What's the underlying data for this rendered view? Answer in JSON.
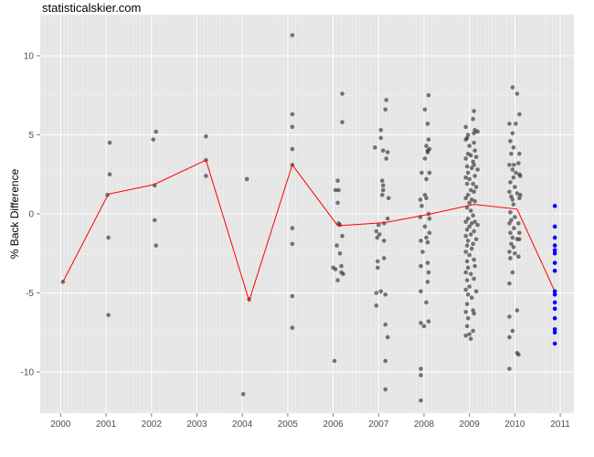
{
  "watermark": "statisticalskier.com",
  "chart_data": {
    "type": "scatter",
    "title": "",
    "xlabel": "",
    "ylabel": "% Back Difference",
    "xlim": [
      1999.55,
      2011.3
    ],
    "ylim": [
      -12.6,
      12.6
    ],
    "x_ticks": [
      2000,
      2001,
      2002,
      2003,
      2004,
      2005,
      2006,
      2007,
      2008,
      2009,
      2010,
      2011
    ],
    "y_ticks": [
      -10,
      -5,
      0,
      5,
      10
    ],
    "grid": true,
    "legend": "none",
    "colors": {
      "panel": "#e5e5e5",
      "grid": "#ffffff",
      "points": "#333333",
      "highlight": "#0000ff",
      "line": "#ff0000"
    },
    "series": [
      {
        "role": "points",
        "points": [
          [
            2000.05,
            -4.3
          ],
          [
            2001.03,
            1.2
          ],
          [
            2001.05,
            -6.4
          ],
          [
            2001.05,
            -1.5
          ],
          [
            2001.08,
            2.5
          ],
          [
            2001.08,
            4.5
          ],
          [
            2002.04,
            4.7
          ],
          [
            2002.07,
            1.8
          ],
          [
            2002.07,
            -0.4
          ],
          [
            2002.1,
            5.2
          ],
          [
            2002.1,
            -2.0
          ],
          [
            2003.2,
            4.9
          ],
          [
            2003.2,
            3.4
          ],
          [
            2003.2,
            2.4
          ],
          [
            2004.02,
            -11.4
          ],
          [
            2004.1,
            2.2
          ],
          [
            2004.15,
            -5.4
          ],
          [
            2005.1,
            11.3
          ],
          [
            2005.1,
            6.3
          ],
          [
            2005.1,
            5.5
          ],
          [
            2005.1,
            4.1
          ],
          [
            2005.1,
            3.1
          ],
          [
            2005.1,
            -0.9
          ],
          [
            2005.1,
            -1.9
          ],
          [
            2005.1,
            -5.2
          ],
          [
            2005.1,
            -7.2
          ],
          [
            2006.0,
            -3.4
          ],
          [
            2006.03,
            -9.3
          ],
          [
            2006.05,
            -3.5
          ],
          [
            2006.05,
            1.5
          ],
          [
            2006.08,
            -2.0
          ],
          [
            2006.1,
            2.1
          ],
          [
            2006.1,
            0.7
          ],
          [
            2006.12,
            1.5
          ],
          [
            2006.12,
            -0.6
          ],
          [
            2006.15,
            -0.7
          ],
          [
            2006.15,
            -2.5
          ],
          [
            2006.18,
            -3.3
          ],
          [
            2006.18,
            -3.7
          ],
          [
            2006.2,
            7.6
          ],
          [
            2006.2,
            5.8
          ],
          [
            2006.2,
            -1.4
          ],
          [
            2006.22,
            -3.8
          ],
          [
            2006.1,
            -4.2
          ],
          [
            2006.92,
            4.2
          ],
          [
            2006.95,
            -1.1
          ],
          [
            2006.95,
            -5.0
          ],
          [
            2006.95,
            -5.8
          ],
          [
            2006.97,
            -1.5
          ],
          [
            2006.98,
            -3.0
          ],
          [
            2006.98,
            -3.4
          ],
          [
            2007.0,
            -0.7
          ],
          [
            2007.02,
            -1.3
          ],
          [
            2007.05,
            5.3
          ],
          [
            2007.05,
            4.8
          ],
          [
            2007.05,
            -4.9
          ],
          [
            2007.08,
            2.1
          ],
          [
            2007.08,
            1.2
          ],
          [
            2007.1,
            4.0
          ],
          [
            2007.1,
            1.8
          ],
          [
            2007.1,
            1.5
          ],
          [
            2007.12,
            -0.6
          ],
          [
            2007.12,
            -1.7
          ],
          [
            2007.12,
            -2.8
          ],
          [
            2007.15,
            6.6
          ],
          [
            2007.15,
            -5.1
          ],
          [
            2007.15,
            -7.0
          ],
          [
            2007.15,
            -9.3
          ],
          [
            2007.15,
            -11.1
          ],
          [
            2007.17,
            7.2
          ],
          [
            2007.17,
            3.5
          ],
          [
            2007.2,
            3.9
          ],
          [
            2007.2,
            -0.3
          ],
          [
            2007.2,
            -7.8
          ],
          [
            2007.22,
            1.0
          ],
          [
            2007.92,
            0.9
          ],
          [
            2007.92,
            -0.2
          ],
          [
            2007.93,
            -1.7
          ],
          [
            2007.93,
            -3.3
          ],
          [
            2007.93,
            -4.9
          ],
          [
            2007.93,
            -6.9
          ],
          [
            2007.93,
            -9.8
          ],
          [
            2007.93,
            -10.2
          ],
          [
            2007.93,
            -11.8
          ],
          [
            2007.95,
            2.6
          ],
          [
            2007.95,
            0.5
          ],
          [
            2007.97,
            -2.4
          ],
          [
            2008.0,
            -7.1
          ],
          [
            2008.02,
            6.6
          ],
          [
            2008.02,
            3.5
          ],
          [
            2008.02,
            1.2
          ],
          [
            2008.02,
            -0.8
          ],
          [
            2008.05,
            4.3
          ],
          [
            2008.05,
            2.2
          ],
          [
            2008.05,
            1.0
          ],
          [
            2008.05,
            -1.5
          ],
          [
            2008.05,
            -5.6
          ],
          [
            2008.08,
            5.7
          ],
          [
            2008.08,
            4.0
          ],
          [
            2008.08,
            3.9
          ],
          [
            2008.08,
            -1.8
          ],
          [
            2008.08,
            -3.1
          ],
          [
            2008.08,
            -4.3
          ],
          [
            2008.1,
            7.5
          ],
          [
            2008.1,
            4.7
          ],
          [
            2008.1,
            0.0
          ],
          [
            2008.1,
            -3.7
          ],
          [
            2008.1,
            -6.8
          ],
          [
            2008.12,
            4.1
          ],
          [
            2008.12,
            2.6
          ],
          [
            2008.12,
            -0.3
          ],
          [
            2008.12,
            -1.2
          ],
          [
            2008.92,
            5.5
          ],
          [
            2008.92,
            4.7
          ],
          [
            2008.92,
            3.5
          ],
          [
            2008.92,
            2.3
          ],
          [
            2008.92,
            1.0
          ],
          [
            2008.92,
            -0.5
          ],
          [
            2008.92,
            -1.4
          ],
          [
            2008.92,
            -2.4
          ],
          [
            2008.92,
            -3.7
          ],
          [
            2008.92,
            -4.8
          ],
          [
            2008.92,
            -6.2
          ],
          [
            2008.92,
            -7.7
          ],
          [
            2008.95,
            4.8
          ],
          [
            2008.95,
            3.0
          ],
          [
            2008.95,
            1.9
          ],
          [
            2008.95,
            0.4
          ],
          [
            2008.95,
            -1.0
          ],
          [
            2008.95,
            -2.0
          ],
          [
            2008.95,
            -3.0
          ],
          [
            2008.95,
            -4.2
          ],
          [
            2008.95,
            -5.7
          ],
          [
            2008.95,
            -7.1
          ],
          [
            2008.97,
            5.0
          ],
          [
            2008.97,
            3.8
          ],
          [
            2008.97,
            2.6
          ],
          [
            2008.97,
            1.2
          ],
          [
            2008.97,
            -0.3
          ],
          [
            2008.97,
            -1.7
          ],
          [
            2008.97,
            -3.4
          ],
          [
            2008.97,
            -5.1
          ],
          [
            2008.97,
            -6.6
          ],
          [
            2009.0,
            4.3
          ],
          [
            2009.0,
            2.2
          ],
          [
            2009.0,
            0.7
          ],
          [
            2009.0,
            -0.8
          ],
          [
            2009.0,
            -2.6
          ],
          [
            2009.0,
            -4.6
          ],
          [
            2009.0,
            -7.6
          ],
          [
            2009.03,
            3.7
          ],
          [
            2009.03,
            1.5
          ],
          [
            2009.03,
            0.2
          ],
          [
            2009.03,
            -1.3
          ],
          [
            2009.03,
            -3.8
          ],
          [
            2009.03,
            -7.9
          ],
          [
            2009.05,
            2.9
          ],
          [
            2009.05,
            0.9
          ],
          [
            2009.05,
            -0.6
          ],
          [
            2009.05,
            -2.2
          ],
          [
            2009.05,
            -5.3
          ],
          [
            2009.08,
            6.0
          ],
          [
            2009.08,
            3.3
          ],
          [
            2009.08,
            1.9
          ],
          [
            2009.08,
            -0.1
          ],
          [
            2009.08,
            -1.9
          ],
          [
            2009.08,
            -6.1
          ],
          [
            2009.08,
            -7.4
          ],
          [
            2009.1,
            6.5
          ],
          [
            2009.1,
            5.1
          ],
          [
            2009.1,
            4.5
          ],
          [
            2009.1,
            3.1
          ],
          [
            2009.1,
            1.4
          ],
          [
            2009.1,
            -1.1
          ],
          [
            2009.1,
            -2.9
          ],
          [
            2009.1,
            -4.1
          ],
          [
            2009.1,
            -6.3
          ],
          [
            2009.12,
            5.3
          ],
          [
            2009.12,
            4.0
          ],
          [
            2009.12,
            2.4
          ],
          [
            2009.12,
            0.8
          ],
          [
            2009.12,
            -0.5
          ],
          [
            2009.12,
            -3.3
          ],
          [
            2009.15,
            3.6
          ],
          [
            2009.15,
            1.7
          ],
          [
            2009.15,
            -1.6
          ],
          [
            2009.15,
            -4.9
          ],
          [
            2009.18,
            5.2
          ],
          [
            2009.18,
            2.8
          ],
          [
            2009.18,
            -0.7
          ],
          [
            2009.88,
            5.7
          ],
          [
            2009.88,
            3.1
          ],
          [
            2009.88,
            1.4
          ],
          [
            2009.88,
            -0.6
          ],
          [
            2009.88,
            -2.4
          ],
          [
            2009.88,
            -4.4
          ],
          [
            2009.88,
            -6.5
          ],
          [
            2009.88,
            -7.8
          ],
          [
            2009.88,
            -9.8
          ],
          [
            2009.9,
            4.6
          ],
          [
            2009.9,
            2.0
          ],
          [
            2009.9,
            0.1
          ],
          [
            2009.9,
            -1.2
          ],
          [
            2009.9,
            -2.8
          ],
          [
            2009.92,
            3.8
          ],
          [
            2009.92,
            1.1
          ],
          [
            2009.92,
            -0.4
          ],
          [
            2009.92,
            -1.9
          ],
          [
            2009.95,
            8.0
          ],
          [
            2009.95,
            5.1
          ],
          [
            2009.95,
            2.8
          ],
          [
            2009.95,
            0.9
          ],
          [
            2009.95,
            -1.5
          ],
          [
            2009.95,
            -3.7
          ],
          [
            2009.95,
            -7.4
          ],
          [
            2009.97,
            4.2
          ],
          [
            2009.97,
            2.3
          ],
          [
            2009.97,
            0.6
          ],
          [
            2009.97,
            -2.1
          ],
          [
            2009.98,
            3.1
          ],
          [
            2009.98,
            -0.9
          ],
          [
            2010.0,
            1.7
          ],
          [
            2010.0,
            -0.2
          ],
          [
            2010.0,
            -2.5
          ],
          [
            2010.02,
            5.7
          ],
          [
            2010.02,
            2.6
          ],
          [
            2010.05,
            7.6
          ],
          [
            2010.05,
            1.3
          ],
          [
            2010.05,
            -1.6
          ],
          [
            2010.05,
            -6.1
          ],
          [
            2010.05,
            -8.8
          ],
          [
            2010.08,
            3.2
          ],
          [
            2010.08,
            -0.6
          ],
          [
            2010.08,
            -2.7
          ],
          [
            2010.08,
            -8.9
          ],
          [
            2010.1,
            6.3
          ],
          [
            2010.1,
            3.8
          ],
          [
            2010.1,
            2.5
          ],
          [
            2010.1,
            1.0
          ],
          [
            2010.1,
            -1.2
          ],
          [
            2010.1,
            -1.6
          ],
          [
            2010.12,
            2.4
          ],
          [
            2010.12,
            1.2
          ]
        ]
      },
      {
        "role": "highlight",
        "points": [
          [
            2010.88,
            0.5
          ],
          [
            2010.88,
            -0.8
          ],
          [
            2010.88,
            -1.5
          ],
          [
            2010.88,
            -2.0
          ],
          [
            2010.88,
            -2.3
          ],
          [
            2010.88,
            -2.5
          ],
          [
            2010.88,
            -3.1
          ],
          [
            2010.88,
            -3.6
          ],
          [
            2010.88,
            -4.9
          ],
          [
            2010.88,
            -5.1
          ],
          [
            2010.88,
            -5.6
          ],
          [
            2010.88,
            -6.0
          ],
          [
            2010.88,
            -6.6
          ],
          [
            2010.88,
            -7.3
          ],
          [
            2010.88,
            -7.5
          ],
          [
            2010.88,
            -8.2
          ]
        ]
      },
      {
        "role": "mean-line",
        "points": [
          [
            2000.05,
            -4.3
          ],
          [
            2001.05,
            1.25
          ],
          [
            2002.05,
            1.85
          ],
          [
            2003.2,
            3.4
          ],
          [
            2004.15,
            -5.5
          ],
          [
            2005.1,
            3.1
          ],
          [
            2006.1,
            -0.75
          ],
          [
            2007.15,
            -0.55
          ],
          [
            2008.15,
            0.0
          ],
          [
            2009.1,
            0.6
          ],
          [
            2010.05,
            0.3
          ],
          [
            2010.88,
            -4.9
          ]
        ]
      }
    ]
  }
}
